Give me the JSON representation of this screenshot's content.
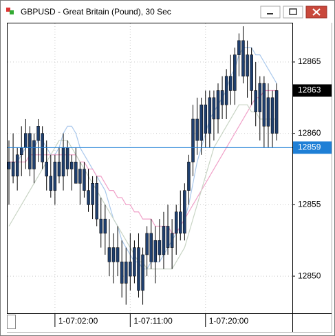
{
  "window": {
    "title": "GBPUSD - Great Britain (Pound), 30 Sec"
  },
  "chart_data": {
    "type": "candlestick",
    "categories": [
      null,
      null,
      null,
      null,
      null,
      null,
      null,
      null,
      null,
      null,
      null,
      "1-07:02:00",
      null,
      null,
      null,
      null,
      null,
      null,
      null,
      null,
      null,
      null,
      null,
      null,
      null,
      null,
      null,
      null,
      null,
      "1-07:11:00",
      null,
      null,
      null,
      null,
      null,
      null,
      null,
      null,
      null,
      null,
      null,
      null,
      null,
      null,
      null,
      null,
      null,
      "1-07:20:00",
      null,
      null,
      null,
      null,
      null,
      null,
      null,
      null,
      null,
      null,
      null,
      null,
      null,
      null,
      null,
      null,
      null
    ],
    "open": [
      12857.5,
      12858,
      12857,
      12858.5,
      12859,
      12860,
      12857.5,
      12859.5,
      12860,
      12858,
      12857,
      12856,
      12858,
      12857,
      12859,
      12857.5,
      12858,
      12856.5,
      12857.5,
      12856,
      12855,
      12856.5,
      12854,
      12853,
      12852,
      12851,
      12852,
      12851,
      12849.5,
      12851,
      12850,
      12852,
      12849,
      12851.5,
      12853,
      12851,
      12852.5,
      12851.5,
      12853.5,
      12852,
      12853,
      12854.5,
      12853,
      12856,
      12858,
      12861,
      12859.5,
      12862,
      12860,
      12862.5,
      12861,
      12863,
      12862,
      12864,
      12863,
      12865.5,
      12866.5,
      12864,
      12865.5,
      12863,
      12861.5,
      12863.5,
      12860.5,
      12862.5,
      12860
    ],
    "high": [
      12859.5,
      12860,
      12859,
      12860.5,
      12861,
      12860.5,
      12860,
      12861,
      12860.5,
      12859.5,
      12858.5,
      12858.5,
      12859,
      12860,
      12859.5,
      12858.5,
      12859,
      12858,
      12858,
      12857.5,
      12857,
      12857,
      12855.5,
      12855,
      12854,
      12853,
      12853.5,
      12852.5,
      12852,
      12853,
      12852.5,
      12853,
      12852,
      12853.5,
      12854,
      12853.5,
      12854,
      12854.5,
      12855,
      12854,
      12855,
      12856,
      12856.5,
      12858.5,
      12862,
      12862.5,
      12862.5,
      12863,
      12863,
      12863,
      12863.5,
      12864,
      12864.5,
      12865.5,
      12866,
      12867,
      12867.5,
      12866.5,
      12866,
      12865,
      12864,
      12864,
      12863.5,
      12863,
      12863.5
    ],
    "low": [
      12855,
      12856.5,
      12856,
      12857,
      12857.5,
      12857,
      12856.5,
      12858,
      12857.5,
      12856,
      12855.5,
      12855,
      12856.5,
      12856,
      12857,
      12856,
      12856.5,
      12855,
      12855.5,
      12854.5,
      12854,
      12853.5,
      12852,
      12851.5,
      12850,
      12849.5,
      12850,
      12848.5,
      12848,
      12849,
      12849.5,
      12848.5,
      12848,
      12850,
      12850.5,
      12849.5,
      12851,
      12850.5,
      12851.5,
      12850.5,
      12851.5,
      12852.5,
      12852.5,
      12855,
      12857,
      12858.5,
      12858.5,
      12859,
      12859,
      12859.5,
      12860,
      12861,
      12861,
      12862,
      12862,
      12864,
      12863.5,
      12862.5,
      12862,
      12860.5,
      12859.5,
      12859,
      12859,
      12859,
      12859.5
    ],
    "close": [
      12858,
      12857,
      12858.5,
      12859,
      12860,
      12857.5,
      12859.5,
      12860.5,
      12858,
      12857,
      12856,
      12858,
      12857,
      12859,
      12857.5,
      12858,
      12856.5,
      12857.5,
      12856,
      12855,
      12856.5,
      12854,
      12853,
      12854,
      12851,
      12852,
      12851,
      12849.5,
      12851,
      12850,
      12852,
      12849,
      12851.5,
      12853,
      12851,
      12852.5,
      12851.5,
      12853.5,
      12852,
      12853,
      12854.5,
      12853,
      12856,
      12858,
      12861,
      12859.5,
      12862,
      12860,
      12862.5,
      12861,
      12863,
      12862,
      12864,
      12863,
      12865.5,
      12866.5,
      12864,
      12865.5,
      12863,
      12861.5,
      12863.5,
      12860.5,
      12862.5,
      12860,
      12863
    ],
    "color": "#1f3f6e",
    "wick_color": "#000000",
    "series": [
      {
        "color": "#a9c8ec",
        "values": [
          12858,
          12858,
          12858,
          12858.5,
          12859,
          12859,
          12859,
          12859.5,
          12859.5,
          12859,
          12858.5,
          12858.5,
          12859,
          12860,
          12860.5,
          12860.5,
          12860,
          12859,
          12858.5,
          12858,
          12857.5,
          12857,
          12856.5,
          12856,
          12855,
          12854,
          12853.5,
          12852.5,
          12852,
          12851.5,
          12851,
          12851,
          12850.5,
          12850.5,
          12851,
          12851,
          12851,
          12851.5,
          12852,
          12852.5,
          12853,
          12853.5,
          12854,
          12855,
          12856.5,
          12858,
          12859,
          12860,
          12861,
          12861.5,
          12862,
          12862.5,
          12863,
          12864,
          12864.5,
          12865.5,
          12866,
          12866,
          12866,
          12865.5,
          12865.5,
          12865,
          12864.5,
          12864,
          12863.5
        ]
      },
      {
        "color": "#f0a0c8",
        "values": [
          12858,
          12858,
          12858,
          12858,
          12858,
          12858.5,
          12858.5,
          12858.5,
          12858.5,
          12858.5,
          12858.5,
          12858.5,
          12858.5,
          12858.5,
          12858.5,
          12858.5,
          12858.5,
          12858,
          12858,
          12857.5,
          12857.5,
          12857,
          12857,
          12856.5,
          12856,
          12856,
          12855.5,
          12855.5,
          12855,
          12855,
          12854.5,
          12854.5,
          12854,
          12854,
          12854,
          12853.5,
          12853.5,
          12853.5,
          12853.5,
          12853,
          12853,
          12853.5,
          12854,
          12854.5,
          12855,
          12855.5,
          12856,
          12856.5,
          12857,
          12857.5,
          12858,
          12858.5,
          12859,
          12859.5,
          12860,
          12860.5,
          12861,
          12861.5,
          12862,
          12862.5,
          12862.5,
          12863,
          12863,
          12863,
          12863
        ]
      },
      {
        "color": "#c8d4c4",
        "values": [
          12853.5,
          12854,
          12854.5,
          12855,
          12855.5,
          12856,
          12856.5,
          12857,
          12857.5,
          12858,
          12858.5,
          12859,
          12859.5,
          12859.5,
          12859.5,
          12859,
          12858.5,
          12858,
          12857.5,
          12857,
          12856.5,
          12856,
          12855.5,
          12855,
          12854.5,
          12854,
          12853.5,
          12853,
          12852.5,
          12852,
          12851.5,
          12851,
          12851,
          12850.5,
          12850.5,
          12850.5,
          12850.5,
          12850.5,
          12850.5,
          12850.5,
          12851,
          12851.5,
          12852,
          12853,
          12854,
          12855,
          12856,
          12857,
          12858,
          12859,
          12859.5,
          12860,
          12860.5,
          12861,
          12861.5,
          12862,
          12862,
          12862,
          12861.5,
          12861.5,
          12861,
          12861,
          12861,
          12861,
          12861
        ]
      }
    ],
    "ylim": [
      12847.4,
      12867.7
    ],
    "yticks": [
      12850,
      12855,
      12860,
      12865
    ],
    "grid": true,
    "price_lines": [
      {
        "value": 12863,
        "color": "#000000",
        "line": false
      },
      {
        "value": 12859,
        "color": "#1e7fd6",
        "line": true
      }
    ]
  }
}
